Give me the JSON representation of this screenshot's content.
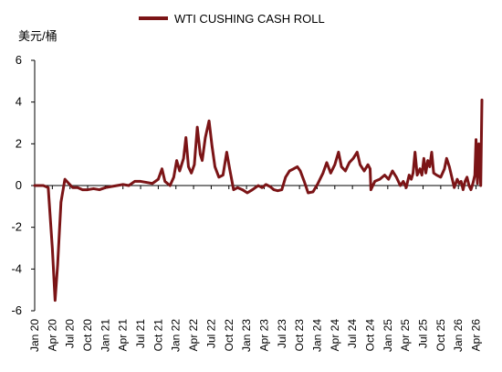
{
  "chart_data": {
    "type": "line",
    "title": "",
    "unit_label": "美元/桶",
    "xlabel": "",
    "ylabel": "美元/桶",
    "ylim": [
      -6,
      6
    ],
    "yticks": [
      6,
      4,
      2,
      0,
      -2,
      -4,
      -6
    ],
    "grid": false,
    "legend_position": "top-center",
    "x_range": [
      "2020-01",
      "2026-05"
    ],
    "x_tick_labels": [
      "Jan 20",
      "Apr 20",
      "Jul 20",
      "Oct 20",
      "Jan 21",
      "Apr 21",
      "Jul 21",
      "Oct 21",
      "Jan 22",
      "Apr 22",
      "Jul 22",
      "Oct 22",
      "Jan 23",
      "Apr 23",
      "Jul 23",
      "Oct 23",
      "Jan 24",
      "Apr 24",
      "Jul 24",
      "Oct 24",
      "Jan 25",
      "Apr 25",
      "Jul 25",
      "Oct 25",
      "Jan 26",
      "Apr 26"
    ],
    "series": [
      {
        "name": "WTI CUSHING CASH ROLL",
        "color": "#7b1416",
        "points": [
          [
            "2020-01-01",
            0.0
          ],
          [
            "2020-02-15",
            0.0
          ],
          [
            "2020-03-10",
            -0.1
          ],
          [
            "2020-04-01",
            -3.0
          ],
          [
            "2020-04-15",
            -5.5
          ],
          [
            "2020-04-28",
            -3.8
          ],
          [
            "2020-05-15",
            -0.8
          ],
          [
            "2020-06-05",
            0.3
          ],
          [
            "2020-06-25",
            0.1
          ],
          [
            "2020-07-15",
            -0.1
          ],
          [
            "2020-08-10",
            -0.1
          ],
          [
            "2020-09-05",
            -0.2
          ],
          [
            "2020-10-01",
            -0.2
          ],
          [
            "2020-11-01",
            -0.15
          ],
          [
            "2020-12-01",
            -0.2
          ],
          [
            "2021-01-01",
            -0.1
          ],
          [
            "2021-02-01",
            -0.05
          ],
          [
            "2021-03-01",
            0.0
          ],
          [
            "2021-04-01",
            0.05
          ],
          [
            "2021-05-01",
            0.0
          ],
          [
            "2021-06-01",
            0.2
          ],
          [
            "2021-07-01",
            0.2
          ],
          [
            "2021-08-01",
            0.15
          ],
          [
            "2021-09-01",
            0.1
          ],
          [
            "2021-10-01",
            0.3
          ],
          [
            "2021-10-20",
            0.8
          ],
          [
            "2021-11-05",
            0.2
          ],
          [
            "2021-12-01",
            0.0
          ],
          [
            "2021-12-20",
            0.4
          ],
          [
            "2022-01-05",
            1.2
          ],
          [
            "2022-01-20",
            0.7
          ],
          [
            "2022-02-10",
            1.3
          ],
          [
            "2022-02-22",
            2.3
          ],
          [
            "2022-03-05",
            0.9
          ],
          [
            "2022-03-20",
            0.6
          ],
          [
            "2022-04-05",
            1.0
          ],
          [
            "2022-04-20",
            2.8
          ],
          [
            "2022-05-05",
            1.5
          ],
          [
            "2022-05-15",
            1.2
          ],
          [
            "2022-06-01",
            2.3
          ],
          [
            "2022-06-20",
            3.1
          ],
          [
            "2022-07-05",
            1.9
          ],
          [
            "2022-07-20",
            0.9
          ],
          [
            "2022-08-10",
            0.4
          ],
          [
            "2022-09-01",
            0.5
          ],
          [
            "2022-09-20",
            1.6
          ],
          [
            "2022-10-05",
            0.8
          ],
          [
            "2022-10-25",
            -0.2
          ],
          [
            "2022-11-15",
            -0.1
          ],
          [
            "2022-12-10",
            -0.2
          ],
          [
            "2023-01-05",
            -0.35
          ],
          [
            "2023-02-01",
            -0.2
          ],
          [
            "2023-03-01",
            0.0
          ],
          [
            "2023-03-20",
            -0.1
          ],
          [
            "2023-04-10",
            0.05
          ],
          [
            "2023-05-01",
            -0.05
          ],
          [
            "2023-05-20",
            -0.2
          ],
          [
            "2023-06-10",
            -0.25
          ],
          [
            "2023-07-01",
            -0.2
          ],
          [
            "2023-07-20",
            0.4
          ],
          [
            "2023-08-10",
            0.7
          ],
          [
            "2023-09-01",
            0.8
          ],
          [
            "2023-09-20",
            0.9
          ],
          [
            "2023-10-05",
            0.7
          ],
          [
            "2023-10-25",
            0.2
          ],
          [
            "2023-11-15",
            -0.35
          ],
          [
            "2023-12-10",
            -0.3
          ],
          [
            "2024-01-05",
            0.1
          ],
          [
            "2024-02-01",
            0.6
          ],
          [
            "2024-02-20",
            1.1
          ],
          [
            "2024-03-10",
            0.6
          ],
          [
            "2024-04-01",
            1.0
          ],
          [
            "2024-04-20",
            1.6
          ],
          [
            "2024-05-05",
            0.9
          ],
          [
            "2024-05-25",
            0.7
          ],
          [
            "2024-06-15",
            1.1
          ],
          [
            "2024-07-05",
            1.3
          ],
          [
            "2024-07-25",
            1.6
          ],
          [
            "2024-08-10",
            1.0
          ],
          [
            "2024-09-01",
            0.7
          ],
          [
            "2024-09-20",
            1.0
          ],
          [
            "2024-10-01",
            0.8
          ],
          [
            "2024-10-05",
            -0.2
          ],
          [
            "2024-10-25",
            0.2
          ],
          [
            "2024-11-20",
            0.3
          ],
          [
            "2024-12-15",
            0.5
          ],
          [
            "2025-01-05",
            0.3
          ],
          [
            "2025-01-25",
            0.7
          ],
          [
            "2025-02-15",
            0.4
          ],
          [
            "2025-03-05",
            0.0
          ],
          [
            "2025-03-20",
            0.2
          ],
          [
            "2025-04-05",
            -0.1
          ],
          [
            "2025-04-20",
            0.5
          ],
          [
            "2025-05-01",
            0.3
          ],
          [
            "2025-05-10",
            0.6
          ],
          [
            "2025-05-20",
            1.6
          ],
          [
            "2025-06-01",
            0.5
          ],
          [
            "2025-06-15",
            0.8
          ],
          [
            "2025-06-25",
            0.5
          ],
          [
            "2025-07-05",
            1.3
          ],
          [
            "2025-07-15",
            0.6
          ],
          [
            "2025-07-25",
            1.2
          ],
          [
            "2025-08-05",
            0.9
          ],
          [
            "2025-08-15",
            1.6
          ],
          [
            "2025-08-25",
            0.6
          ],
          [
            "2025-09-10",
            0.5
          ],
          [
            "2025-10-01",
            0.4
          ],
          [
            "2025-10-20",
            0.8
          ],
          [
            "2025-11-01",
            1.3
          ],
          [
            "2025-11-15",
            0.9
          ],
          [
            "2025-11-25",
            0.5
          ],
          [
            "2025-12-10",
            -0.1
          ],
          [
            "2025-12-25",
            0.3
          ],
          [
            "2026-01-05",
            0.1
          ],
          [
            "2026-01-15",
            0.2
          ],
          [
            "2026-01-25",
            -0.2
          ],
          [
            "2026-02-05",
            0.2
          ],
          [
            "2026-02-15",
            0.4
          ],
          [
            "2026-02-25",
            0.0
          ],
          [
            "2026-03-05",
            -0.2
          ],
          [
            "2026-03-15",
            0.1
          ],
          [
            "2026-03-25",
            0.5
          ],
          [
            "2026-04-01",
            2.2
          ],
          [
            "2026-04-08",
            0.1
          ],
          [
            "2026-04-15",
            2.0
          ],
          [
            "2026-04-25",
            0.0
          ],
          [
            "2026-05-01",
            4.1
          ]
        ]
      }
    ]
  }
}
